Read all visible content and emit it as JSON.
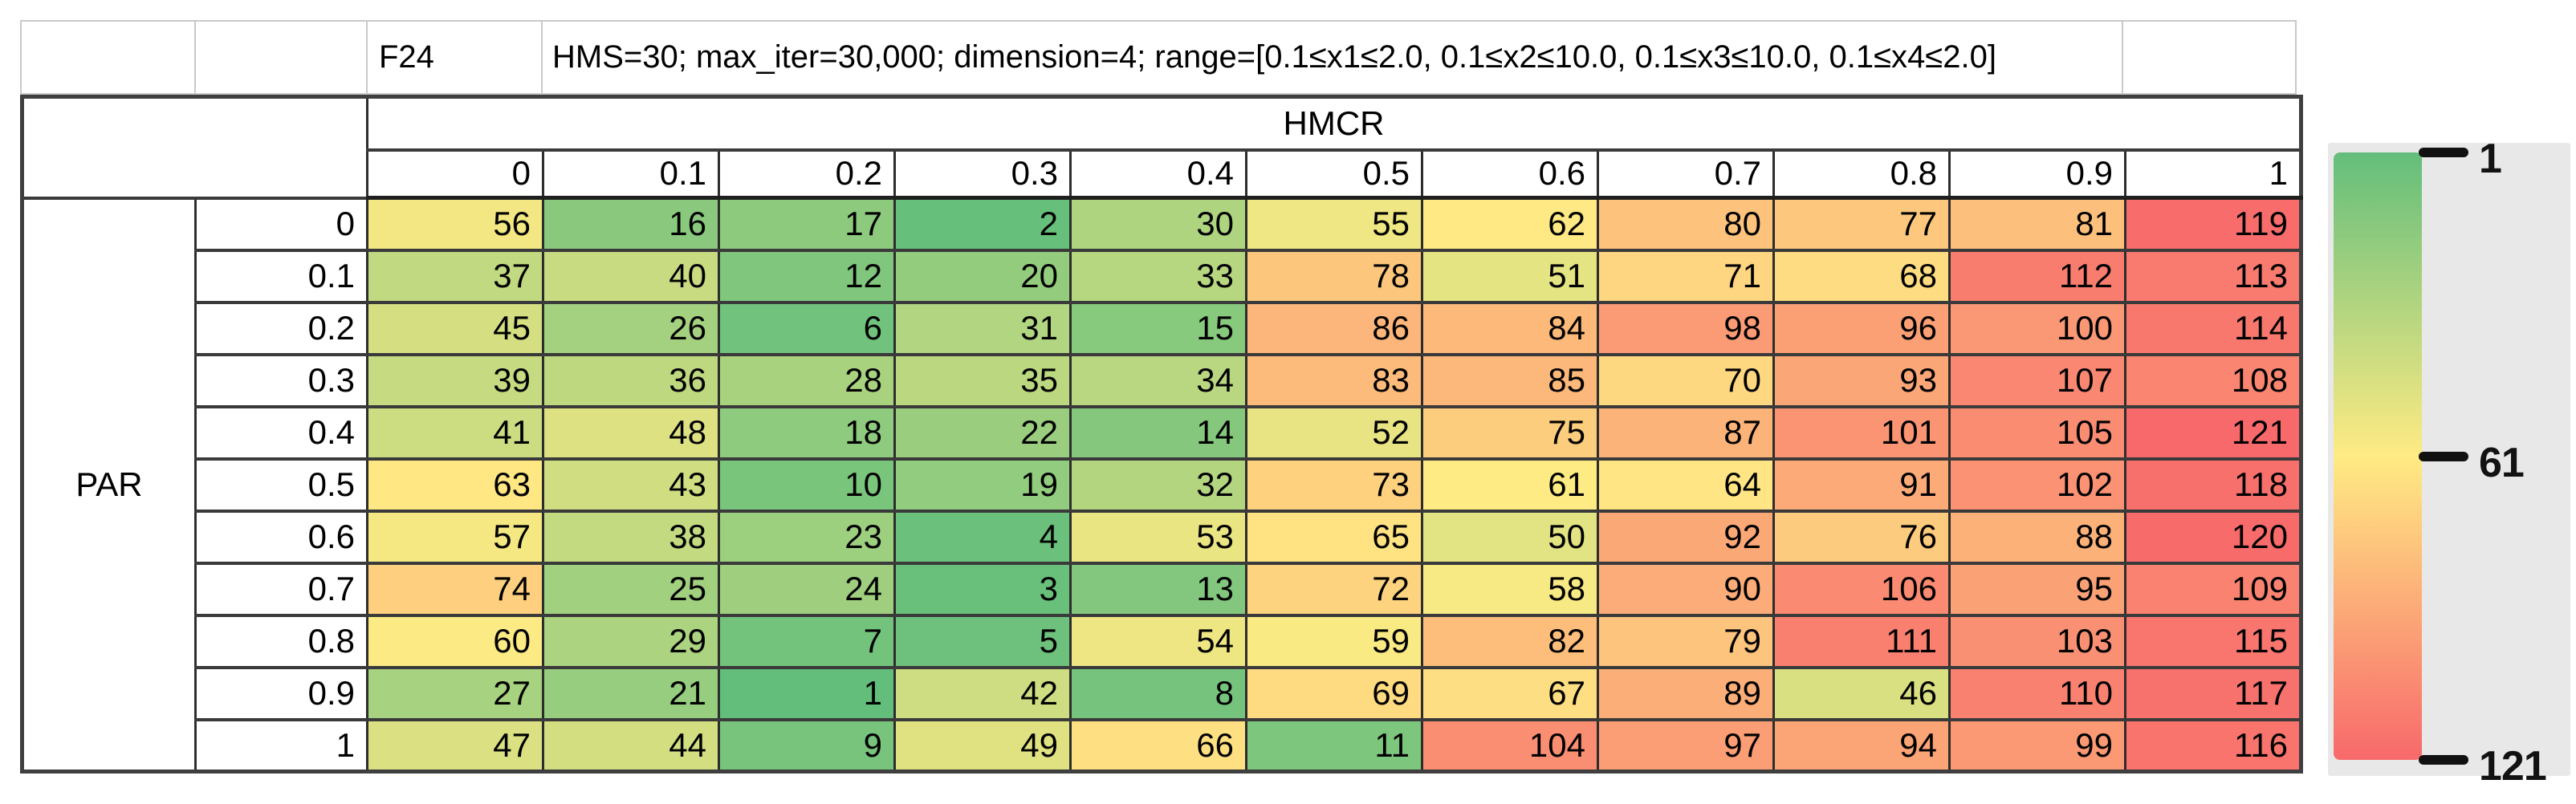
{
  "title_row": {
    "function_label": "F24",
    "parameters": "HMS=30; max_iter=30,000; dimension=4; range=[0.1≤x1≤2.0, 0.1≤x2≤10.0, 0.1≤x3≤10.0, 0.1≤x4≤2.0]"
  },
  "chart_data": {
    "type": "heatmap",
    "title": "F24",
    "x_axis_label": "HMCR",
    "y_axis_label": "PAR",
    "columns": [
      "0",
      "0.1",
      "0.2",
      "0.3",
      "0.4",
      "0.5",
      "0.6",
      "0.7",
      "0.8",
      "0.9",
      "1"
    ],
    "rows": [
      "0",
      "0.1",
      "0.2",
      "0.3",
      "0.4",
      "0.5",
      "0.6",
      "0.7",
      "0.8",
      "0.9",
      "1"
    ],
    "values": [
      [
        56,
        16,
        17,
        2,
        30,
        55,
        62,
        80,
        77,
        81,
        119
      ],
      [
        37,
        40,
        12,
        20,
        33,
        78,
        51,
        71,
        68,
        112,
        113
      ],
      [
        45,
        26,
        6,
        31,
        15,
        86,
        84,
        98,
        96,
        100,
        114
      ],
      [
        39,
        36,
        28,
        35,
        34,
        83,
        85,
        70,
        93,
        107,
        108
      ],
      [
        41,
        48,
        18,
        22,
        14,
        52,
        75,
        87,
        101,
        105,
        121
      ],
      [
        63,
        43,
        10,
        19,
        32,
        73,
        61,
        64,
        91,
        102,
        118
      ],
      [
        57,
        38,
        23,
        4,
        53,
        65,
        50,
        92,
        76,
        88,
        120
      ],
      [
        74,
        25,
        24,
        3,
        13,
        72,
        58,
        90,
        106,
        95,
        109
      ],
      [
        60,
        29,
        7,
        5,
        54,
        59,
        82,
        79,
        111,
        103,
        115
      ],
      [
        27,
        21,
        1,
        42,
        8,
        69,
        67,
        89,
        46,
        110,
        117
      ],
      [
        47,
        44,
        9,
        49,
        66,
        11,
        104,
        97,
        94,
        99,
        116
      ]
    ],
    "value_range": [
      1,
      121
    ],
    "color_scale": {
      "min_value": 1,
      "mid_value": 61,
      "max_value": 121,
      "min_color": "#63BE7B",
      "mid_color": "#FFEB84",
      "max_color": "#F8696B"
    },
    "colorbar_ticks": [
      1,
      61,
      121
    ],
    "legend_position": "right"
  }
}
